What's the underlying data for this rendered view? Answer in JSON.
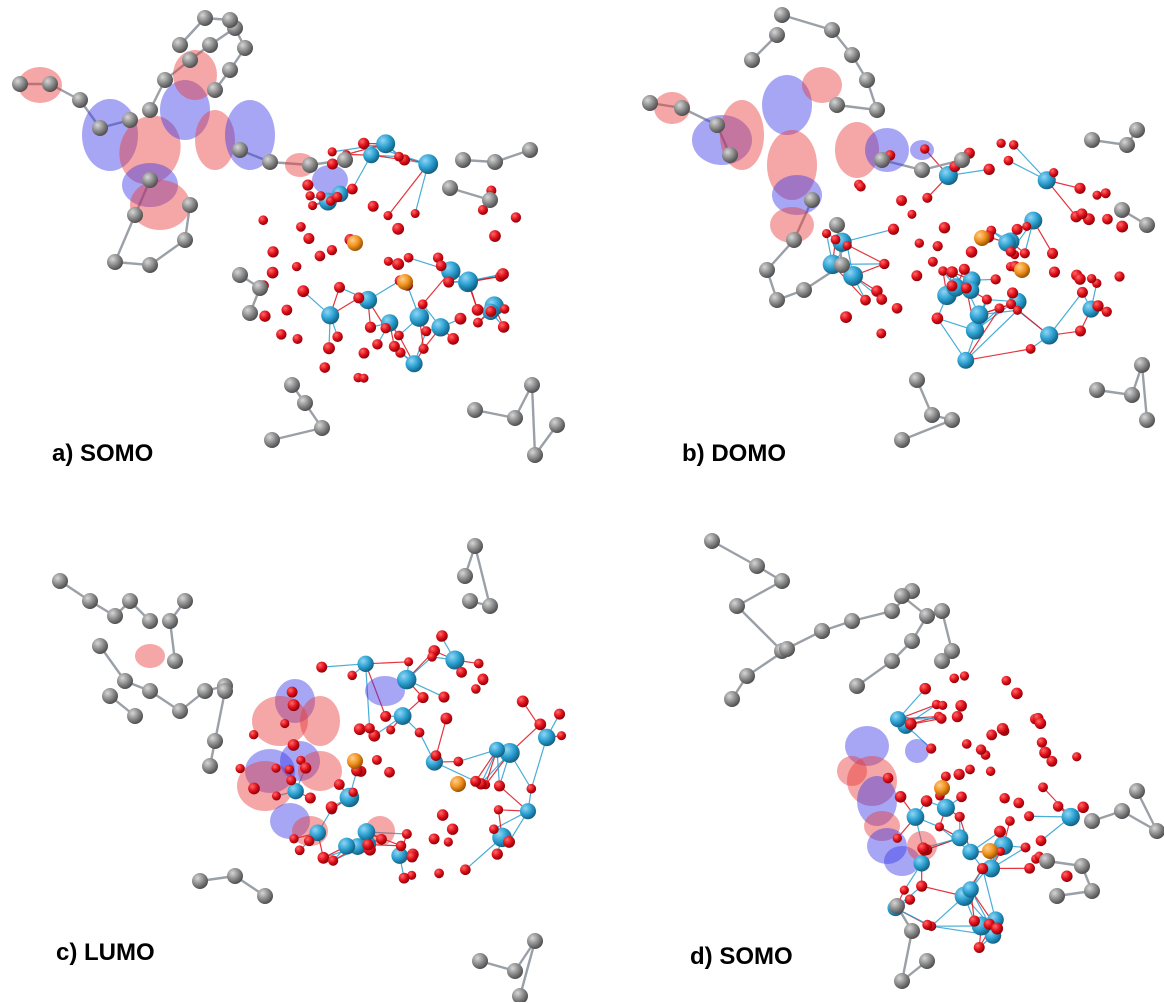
{
  "panels": [
    {
      "id": "a",
      "label": "a) SOMO"
    },
    {
      "id": "b",
      "label": "b) DOMO"
    },
    {
      "id": "c",
      "label": "c) LUMO"
    },
    {
      "id": "d",
      "label": "d) SOMO"
    }
  ],
  "colors": {
    "oxygen": "#e0101a",
    "metal": "#2a9fd0",
    "heteroatom": "#f0901e",
    "carbon": "#8a8a8a",
    "nitrogen": "#2040e0",
    "lobe_positive": "#e83a3a",
    "lobe_negative": "#3a3ae8",
    "bond": "#9aa0a8"
  }
}
